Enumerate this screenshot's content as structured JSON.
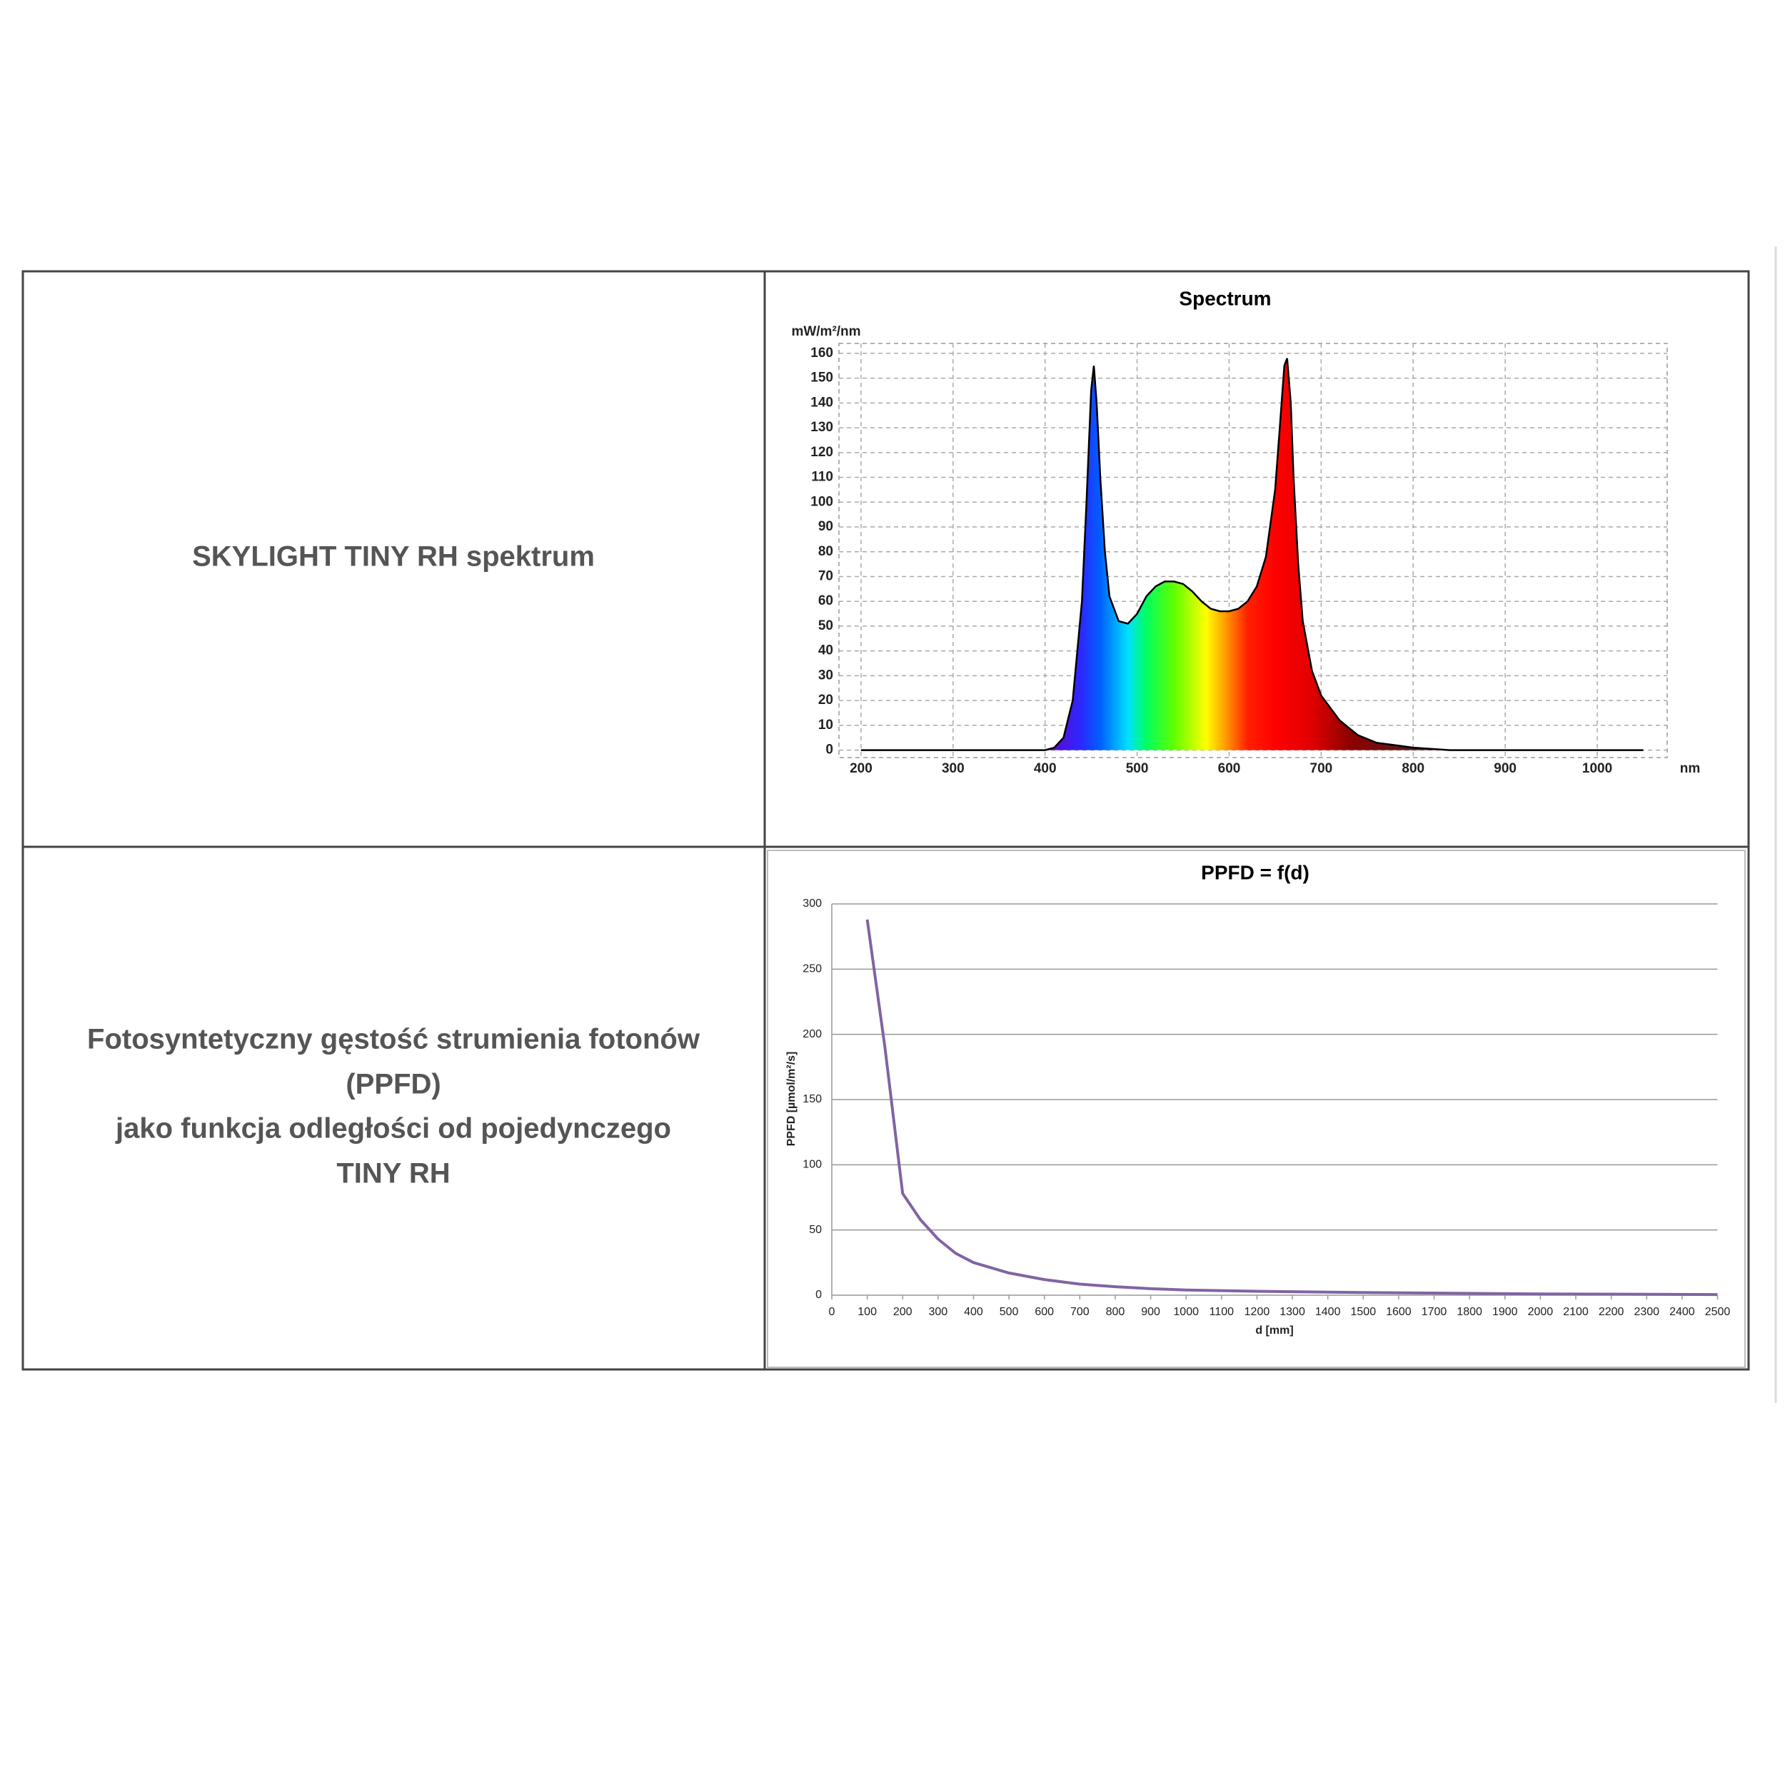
{
  "table": {
    "rows": [
      {
        "label": [
          "SKYLIGHT TINY RH spektrum"
        ]
      },
      {
        "label": [
          "Fotosyntetyczny gęstość strumienia fotonów",
          "(PPFD)",
          "jako funkcja odległości od pojedynczego",
          "TINY RH"
        ]
      }
    ]
  },
  "chart_data": [
    {
      "type": "area",
      "title": "Spectrum",
      "y_label": "mW/m²/nm",
      "x_label": "nm",
      "x": [
        200,
        400,
        410,
        420,
        430,
        440,
        445,
        450,
        453,
        456,
        460,
        465,
        470,
        480,
        490,
        500,
        510,
        520,
        530,
        540,
        550,
        560,
        570,
        580,
        590,
        600,
        610,
        620,
        630,
        640,
        650,
        655,
        660,
        663,
        667,
        670,
        675,
        680,
        690,
        700,
        720,
        740,
        760,
        780,
        800,
        840,
        1050
      ],
      "values": [
        0,
        0,
        1,
        5,
        20,
        60,
        100,
        145,
        155,
        140,
        110,
        80,
        62,
        52,
        51,
        55,
        62,
        66,
        68,
        68,
        67,
        64,
        60,
        57,
        56,
        56,
        57,
        60,
        66,
        78,
        105,
        130,
        155,
        158,
        140,
        110,
        75,
        52,
        32,
        22,
        12,
        6,
        3,
        2,
        1,
        0,
        0
      ],
      "color": "#000000",
      "xlim": [
        176,
        1076
      ],
      "ylim": [
        -3,
        164
      ],
      "xticks": [
        200,
        300,
        400,
        500,
        600,
        700,
        800,
        900,
        1000
      ],
      "yticks": [
        0,
        10,
        20,
        30,
        40,
        50,
        60,
        70,
        80,
        90,
        100,
        110,
        120,
        130,
        140,
        150,
        160
      ],
      "grid": true
    },
    {
      "type": "line",
      "title": "PPFD = f(d)",
      "y_label": "PPFD [µmol/m²/s]",
      "x_label": "d [mm]",
      "x": [
        100,
        150,
        200,
        250,
        300,
        350,
        400,
        500,
        600,
        700,
        800,
        900,
        1000,
        1200,
        1500,
        2000,
        2500
      ],
      "values": [
        288,
        190,
        78,
        58,
        43,
        32,
        25,
        17,
        12,
        8.5,
        6.5,
        5,
        4,
        3,
        2,
        1,
        0.5
      ],
      "color": "#8064a2",
      "xlim": [
        0,
        2500
      ],
      "ylim": [
        0,
        300
      ],
      "xticks": [
        0,
        100,
        200,
        300,
        400,
        500,
        600,
        700,
        800,
        900,
        1000,
        1100,
        1200,
        1300,
        1400,
        1500,
        1600,
        1700,
        1800,
        1900,
        2000,
        2100,
        2200,
        2300,
        2400,
        2500
      ],
      "yticks": [
        0,
        50,
        100,
        150,
        200,
        250,
        300
      ],
      "grid": true
    }
  ]
}
